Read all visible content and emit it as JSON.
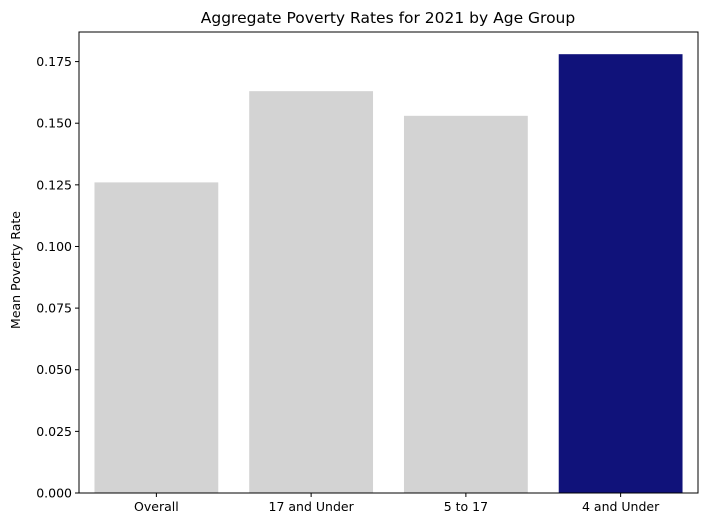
{
  "chart_data": {
    "type": "bar",
    "title": "Aggregate Poverty Rates for 2021 by Age Group",
    "xlabel": "",
    "ylabel": "Mean Poverty Rate",
    "categories": [
      "Overall",
      "17 and Under",
      "5 to 17",
      "4 and Under"
    ],
    "values": [
      0.126,
      0.163,
      0.153,
      0.178
    ],
    "bar_colors": [
      "#d3d3d3",
      "#d3d3d3",
      "#d3d3d3",
      "#10127a"
    ],
    "ylim": [
      0,
      0.187
    ],
    "yticks": [
      0.0,
      0.025,
      0.05,
      0.075,
      0.1,
      0.125,
      0.15,
      0.175
    ],
    "ytick_labels": [
      "0.000",
      "0.025",
      "0.050",
      "0.075",
      "0.100",
      "0.125",
      "0.150",
      "0.175"
    ],
    "grid": false,
    "legend": "none"
  }
}
